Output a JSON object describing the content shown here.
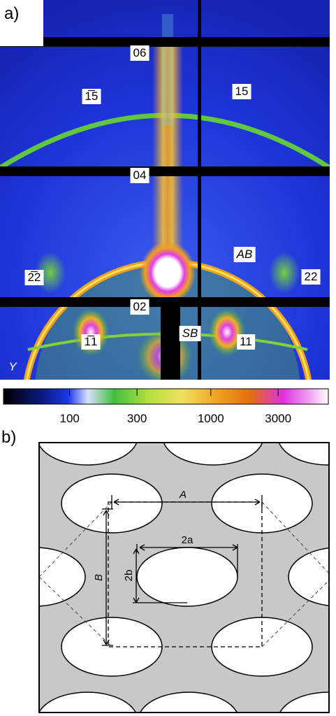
{
  "panel_a": {
    "label": "a)",
    "reflections": [
      "06",
      "1̅5",
      "15",
      "04",
      "AB",
      "2̅2",
      "22",
      "02",
      "SB",
      "1̅1",
      "11",
      "Y"
    ],
    "colorbar": {
      "scale": "log",
      "lim": [
        34,
        6800
      ],
      "ticks": [
        100,
        300,
        1000,
        3000
      ]
    }
  },
  "panel_b": {
    "label": "b)",
    "dimensions": [
      "A",
      "B",
      "2a",
      "2b"
    ]
  }
}
